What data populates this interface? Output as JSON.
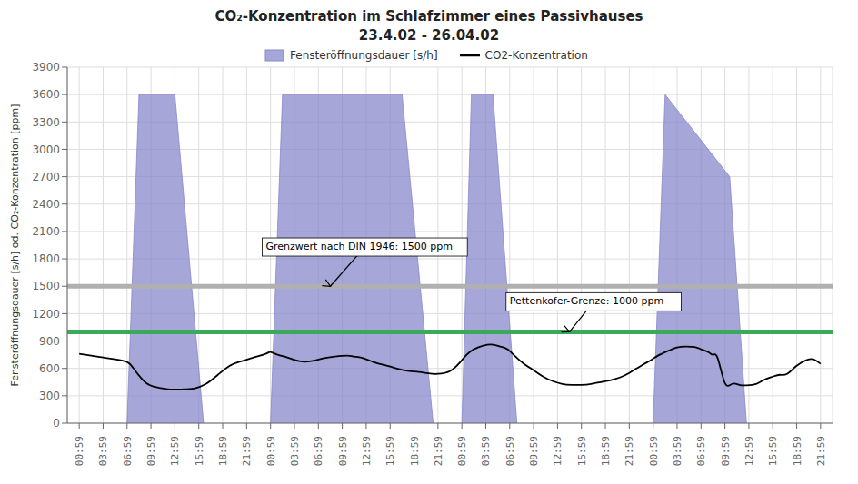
{
  "chart_data": {
    "type": "line",
    "title": "CO₂-Konzentration im Schlafzimmer eines Passivhauses",
    "subtitle": "23.4.02 - 26.04.02",
    "ylabel": "Fensteröffnungsdauer [s/h] od. CO₂-Konzentration [ppm]",
    "xlim": [
      -0.5,
      31.5
    ],
    "xticks": [
      {
        "value": 0,
        "label": "00:59"
      },
      {
        "value": 1,
        "label": "03:59"
      },
      {
        "value": 2,
        "label": "06:59"
      },
      {
        "value": 3,
        "label": "09:59"
      },
      {
        "value": 4,
        "label": "12:59"
      },
      {
        "value": 5,
        "label": "15:59"
      },
      {
        "value": 6,
        "label": "18:59"
      },
      {
        "value": 7,
        "label": "21:59"
      },
      {
        "value": 8,
        "label": "00:59"
      },
      {
        "value": 9,
        "label": "03:59"
      },
      {
        "value": 10,
        "label": "06:59"
      },
      {
        "value": 11,
        "label": "09:59"
      },
      {
        "value": 12,
        "label": "12:59"
      },
      {
        "value": 13,
        "label": "15:59"
      },
      {
        "value": 14,
        "label": "18:59"
      },
      {
        "value": 15,
        "label": "21:59"
      },
      {
        "value": 16,
        "label": "00:59"
      },
      {
        "value": 17,
        "label": "03:59"
      },
      {
        "value": 18,
        "label": "06:59"
      },
      {
        "value": 19,
        "label": "09:59"
      },
      {
        "value": 20,
        "label": "12:59"
      },
      {
        "value": 21,
        "label": "15:59"
      },
      {
        "value": 22,
        "label": "18:59"
      },
      {
        "value": 23,
        "label": "21:59"
      },
      {
        "value": 24,
        "label": "00:59"
      },
      {
        "value": 25,
        "label": "03:59"
      },
      {
        "value": 26,
        "label": "06:59"
      },
      {
        "value": 27,
        "label": "09:59"
      },
      {
        "value": 28,
        "label": "12:59"
      },
      {
        "value": 29,
        "label": "15:59"
      },
      {
        "value": 30,
        "label": "18:59"
      },
      {
        "value": 31,
        "label": "21:59"
      }
    ],
    "ylim": [
      0,
      3900
    ],
    "yticks": [
      0,
      300,
      600,
      900,
      1200,
      1500,
      1800,
      2100,
      2400,
      2700,
      3000,
      3300,
      3600,
      3900
    ],
    "grid": true,
    "legend": "top",
    "series": [
      {
        "name": "Fensteröffnungsdauer [s/h]",
        "type": "area",
        "color": "#8888cc",
        "segments": [
          {
            "x": [
              2.0,
              2.5,
              4.0,
              5.2
            ],
            "values": [
              0,
              3600,
              3600,
              0
            ]
          },
          {
            "x": [
              8.0,
              8.5,
              13.5,
              14.8
            ],
            "values": [
              0,
              3600,
              3600,
              0
            ]
          },
          {
            "x": [
              16.0,
              16.4,
              17.3,
              18.3
            ],
            "values": [
              0,
              3600,
              3600,
              0
            ]
          },
          {
            "x": [
              24.0,
              24.5,
              27.2,
              27.9
            ],
            "values": [
              0,
              3600,
              2700,
              0
            ]
          }
        ]
      },
      {
        "name": "CO2-Konzentration",
        "type": "line",
        "color": "#000000",
        "x": [
          0.0,
          0.5,
          1.0,
          1.5,
          2.0,
          2.3,
          2.8,
          3.3,
          3.8,
          4.3,
          4.8,
          5.3,
          5.8,
          6.3,
          6.8,
          7.3,
          7.8,
          8.0,
          8.3,
          8.7,
          9.2,
          9.7,
          10.2,
          10.7,
          11.2,
          11.5,
          11.9,
          12.3,
          12.7,
          13.0,
          13.4,
          13.8,
          14.2,
          14.6,
          15.0,
          15.5,
          15.9,
          16.2,
          16.5,
          16.9,
          17.3,
          17.6,
          17.9,
          18.2,
          18.6,
          19.0,
          19.4,
          19.8,
          20.2,
          20.6,
          21.0,
          21.4,
          21.8,
          22.2,
          22.6,
          23.0,
          23.5,
          23.9,
          24.2,
          24.6,
          25.0,
          25.4,
          25.8,
          26.0,
          26.3,
          26.5,
          26.7,
          27.0,
          27.3,
          27.6,
          27.9,
          28.3,
          28.6,
          29.0,
          29.3,
          29.6,
          30.0,
          30.4,
          30.7,
          31.0
        ],
        "values": [
          760,
          740,
          720,
          700,
          670,
          590,
          440,
          390,
          370,
          370,
          380,
          430,
          530,
          630,
          680,
          720,
          760,
          780,
          750,
          720,
          680,
          680,
          710,
          730,
          740,
          730,
          710,
          670,
          640,
          620,
          590,
          570,
          560,
          545,
          540,
          570,
          660,
          750,
          810,
          850,
          860,
          840,
          810,
          740,
          650,
          580,
          510,
          460,
          430,
          420,
          420,
          430,
          450,
          470,
          500,
          550,
          630,
          690,
          740,
          790,
          830,
          840,
          830,
          810,
          780,
          750,
          710,
          440,
          430,
          420,
          415,
          430,
          470,
          510,
          530,
          540,
          630,
          690,
          700,
          650
        ]
      }
    ],
    "reference_lines": [
      {
        "value": 1500,
        "color": "#b0b0b0"
      },
      {
        "value": 1000,
        "color": "#3aaa5a"
      }
    ],
    "annotations": [
      {
        "text": "Grenzwert nach DIN 1946: 1500 ppm",
        "x": 7.8,
        "y": 1900,
        "target_x": 10.5,
        "target_y": 1500
      },
      {
        "text": "Pettenkofer-Grenze: 1000 ppm",
        "x": 18.0,
        "y": 1300,
        "target_x": 20.5,
        "target_y": 1000
      }
    ]
  }
}
